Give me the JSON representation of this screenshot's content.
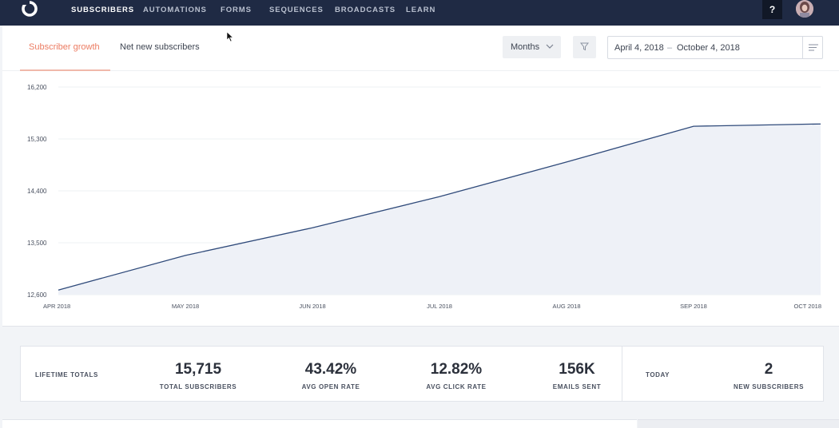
{
  "nav": {
    "items": [
      {
        "label": "SUBSCRIBERS",
        "active": true
      },
      {
        "label": "AUTOMATIONS",
        "active": false
      },
      {
        "label": "FORMS",
        "active": false
      },
      {
        "label": "SEQUENCES",
        "active": false
      },
      {
        "label": "BROADCASTS",
        "active": false
      },
      {
        "label": "LEARN",
        "active": false
      }
    ],
    "help_label": "?"
  },
  "tabs": {
    "growth_label": "Subscriber growth",
    "net_label": "Net new subscribers"
  },
  "controls": {
    "period_value": "Months",
    "date_start": "April 4, 2018",
    "date_separator": "–",
    "date_end": "October 4, 2018"
  },
  "colors": {
    "nav_bg": "#1f2a44",
    "accent": "#ec7c62",
    "line": "#2f4a7a",
    "area": "#eef1f7"
  },
  "chart_data": {
    "type": "area",
    "x": [
      "APR 2018",
      "MAY 2018",
      "JUN 2018",
      "JUL 2018",
      "AUG 2018",
      "SEP 2018",
      "OCT 2018"
    ],
    "series": [
      {
        "values": [
          12680,
          13280,
          13760,
          14300,
          14900,
          15520,
          15560
        ]
      }
    ],
    "y_ticks": [
      "16,200",
      "15,300",
      "14,400",
      "13,500",
      "12,600"
    ],
    "ylim": [
      12600,
      16200
    ],
    "grid": true
  },
  "stats": {
    "lifetime_label": "LIFETIME TOTALS",
    "items": [
      {
        "value": "15,715",
        "label": "TOTAL SUBSCRIBERS"
      },
      {
        "value": "43.42%",
        "label": "AVG OPEN RATE"
      },
      {
        "value": "12.82%",
        "label": "AVG CLICK RATE"
      },
      {
        "value": "156K",
        "label": "EMAILS SENT"
      }
    ],
    "today_label": "TODAY",
    "today_value": "2",
    "today_caption": "NEW SUBSCRIBERS"
  }
}
